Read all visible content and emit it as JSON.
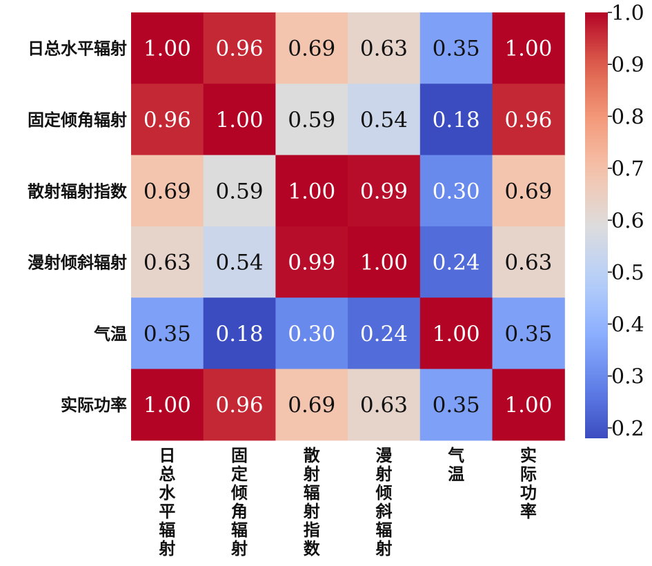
{
  "chart_data": {
    "type": "heatmap",
    "title": "",
    "xlabel": "",
    "ylabel": "",
    "rows": [
      "日总水平辐射",
      "固定倾角辐射",
      "散射辐射指数",
      "漫射倾斜辐射",
      "气温",
      "实际功率"
    ],
    "columns": [
      "日总水平辐射",
      "固定倾角辐射",
      "散射辐射指数",
      "漫射倾斜辐射",
      "气温",
      "实际功率"
    ],
    "values": [
      [
        1.0,
        0.96,
        0.69,
        0.63,
        0.35,
        1.0
      ],
      [
        0.96,
        1.0,
        0.59,
        0.54,
        0.18,
        0.96
      ],
      [
        0.69,
        0.59,
        1.0,
        0.99,
        0.3,
        0.69
      ],
      [
        0.63,
        0.54,
        0.99,
        1.0,
        0.24,
        0.63
      ],
      [
        0.35,
        0.18,
        0.3,
        0.24,
        1.0,
        0.35
      ],
      [
        1.0,
        0.96,
        0.69,
        0.63,
        0.35,
        1.0
      ]
    ],
    "value_format": "0.00",
    "colormap": "coolwarm",
    "colorbar": {
      "min": 0.18,
      "max": 1.0,
      "ticks": [
        0.2,
        0.3,
        0.4,
        0.5,
        0.6,
        0.7,
        0.8,
        0.9,
        1.0
      ],
      "tick_labels": [
        "0.2",
        "0.3",
        "0.4",
        "0.5",
        "0.6",
        "0.7",
        "0.8",
        "0.9",
        "1.0"
      ],
      "placement": "right"
    },
    "grid": false
  }
}
